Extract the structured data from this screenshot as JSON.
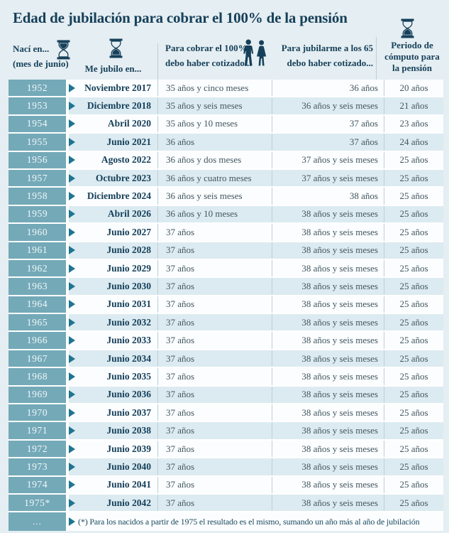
{
  "title": "Edad de jubilación para cobrar el 100% de la pensión",
  "colors": {
    "background": "#e5eef2",
    "teal_year_cell": "#74a9b8",
    "arrow_teal": "#1d7590",
    "navy_text": "#16405a",
    "body_text": "#42565f",
    "row_white": "#fbfdfe",
    "row_blue": "#dcebf1",
    "separator_line": "#bccfd8"
  },
  "header": {
    "col1_line1": "Nací en...",
    "col1_line2": "(mes de junio)",
    "col2": "Me jubilo en...",
    "col3_line1": "Para cobrar el 100%",
    "col3_line2": "debo haber cotizado...",
    "col4_line1": "Para jubilarme a los 65",
    "col4_line2": "debo haber cotizado...",
    "col5_line1": "Periodo de",
    "col5_line2": "cómputo para",
    "col5_line3": "la pensión"
  },
  "icons": {
    "hourglass_birth": "hourglass-top-full-icon",
    "hourglass_retire": "hourglass-bottom-full-icon",
    "hourglass_period": "hourglass-bottom-full-icon",
    "couple": "man-woman-silhouette-icon",
    "row_marker": "right-triangle-arrow-icon"
  },
  "footnote": {
    "year_cell": "...",
    "text": "(*) Para los nacidos a partir de 1975 el resultado es el mismo, sumando un año más al año de jubilación"
  },
  "chart_data": {
    "type": "table",
    "title": "Edad de jubilación para cobrar el 100% de la pensión",
    "columns": [
      "Nací en... (mes de junio)",
      "Me jubilo en...",
      "Para cobrar el 100% debo haber cotizado...",
      "Para jubilarme a los 65 debo haber cotizado...",
      "Periodo de cómputo para la pensión"
    ],
    "rows": [
      [
        "1952",
        "Noviembre 2017",
        "35 años y cinco meses",
        "36 años",
        "20 años"
      ],
      [
        "1953",
        "Diciembre 2018",
        "35 años y seis meses",
        "36 años y seis meses",
        "21 años"
      ],
      [
        "1954",
        "Abril 2020",
        "35 años y 10 meses",
        "37 años",
        "23 años"
      ],
      [
        "1955",
        "Junio 2021",
        "36 años",
        "37 años",
        "24 años"
      ],
      [
        "1956",
        "Agosto 2022",
        "36 años y dos meses",
        "37 años y seis meses",
        "25 años"
      ],
      [
        "1957",
        "Octubre 2023",
        "36 años y cuatro meses",
        "37 años y seis meses",
        "25 años"
      ],
      [
        "1958",
        "Diciembre 2024",
        "36 años y seis meses",
        "38 años",
        "25 años"
      ],
      [
        "1959",
        "Abril 2026",
        "36 años y 10 meses",
        "38 años y seis meses",
        "25 años"
      ],
      [
        "1960",
        "Junio 2027",
        "37 años",
        "38 años y seis meses",
        "25 años"
      ],
      [
        "1961",
        "Junio 2028",
        "37 años",
        "38 años y seis meses",
        "25 años"
      ],
      [
        "1962",
        "Junio 2029",
        "37 años",
        "38 años y seis meses",
        "25 años"
      ],
      [
        "1963",
        "Junio 2030",
        "37 años",
        "38 años y seis meses",
        "25 años"
      ],
      [
        "1964",
        "Junio 2031",
        "37 años",
        "38 años y seis meses",
        "25 años"
      ],
      [
        "1965",
        "Junio 2032",
        "37 años",
        "38 años y seis meses",
        "25 años"
      ],
      [
        "1966",
        "Junio 2033",
        "37 años",
        "38 años y seis meses",
        "25 años"
      ],
      [
        "1967",
        "Junio 2034",
        "37 años",
        "38 años y seis meses",
        "25 años"
      ],
      [
        "1968",
        "Junio 2035",
        "37 años",
        "38 años y seis meses",
        "25 años"
      ],
      [
        "1969",
        "Junio 2036",
        "37 años",
        "38 años y seis meses",
        "25 años"
      ],
      [
        "1970",
        "Junio 2037",
        "37 años",
        "38 años y seis meses",
        "25 años"
      ],
      [
        "1971",
        "Junio 2038",
        "37 años",
        "38 años y seis meses",
        "25 años"
      ],
      [
        "1972",
        "Junio 2039",
        "37 años",
        "38 años y seis meses",
        "25 años"
      ],
      [
        "1973",
        "Junio 2040",
        "37 años",
        "38 años y seis meses",
        "25 años"
      ],
      [
        "1974",
        "Junio 2041",
        "37 años",
        "38 años y seis meses",
        "25 años"
      ],
      [
        "1975*",
        "Junio 2042",
        "37 años",
        "38 años y seis meses",
        "25 años"
      ]
    ]
  }
}
